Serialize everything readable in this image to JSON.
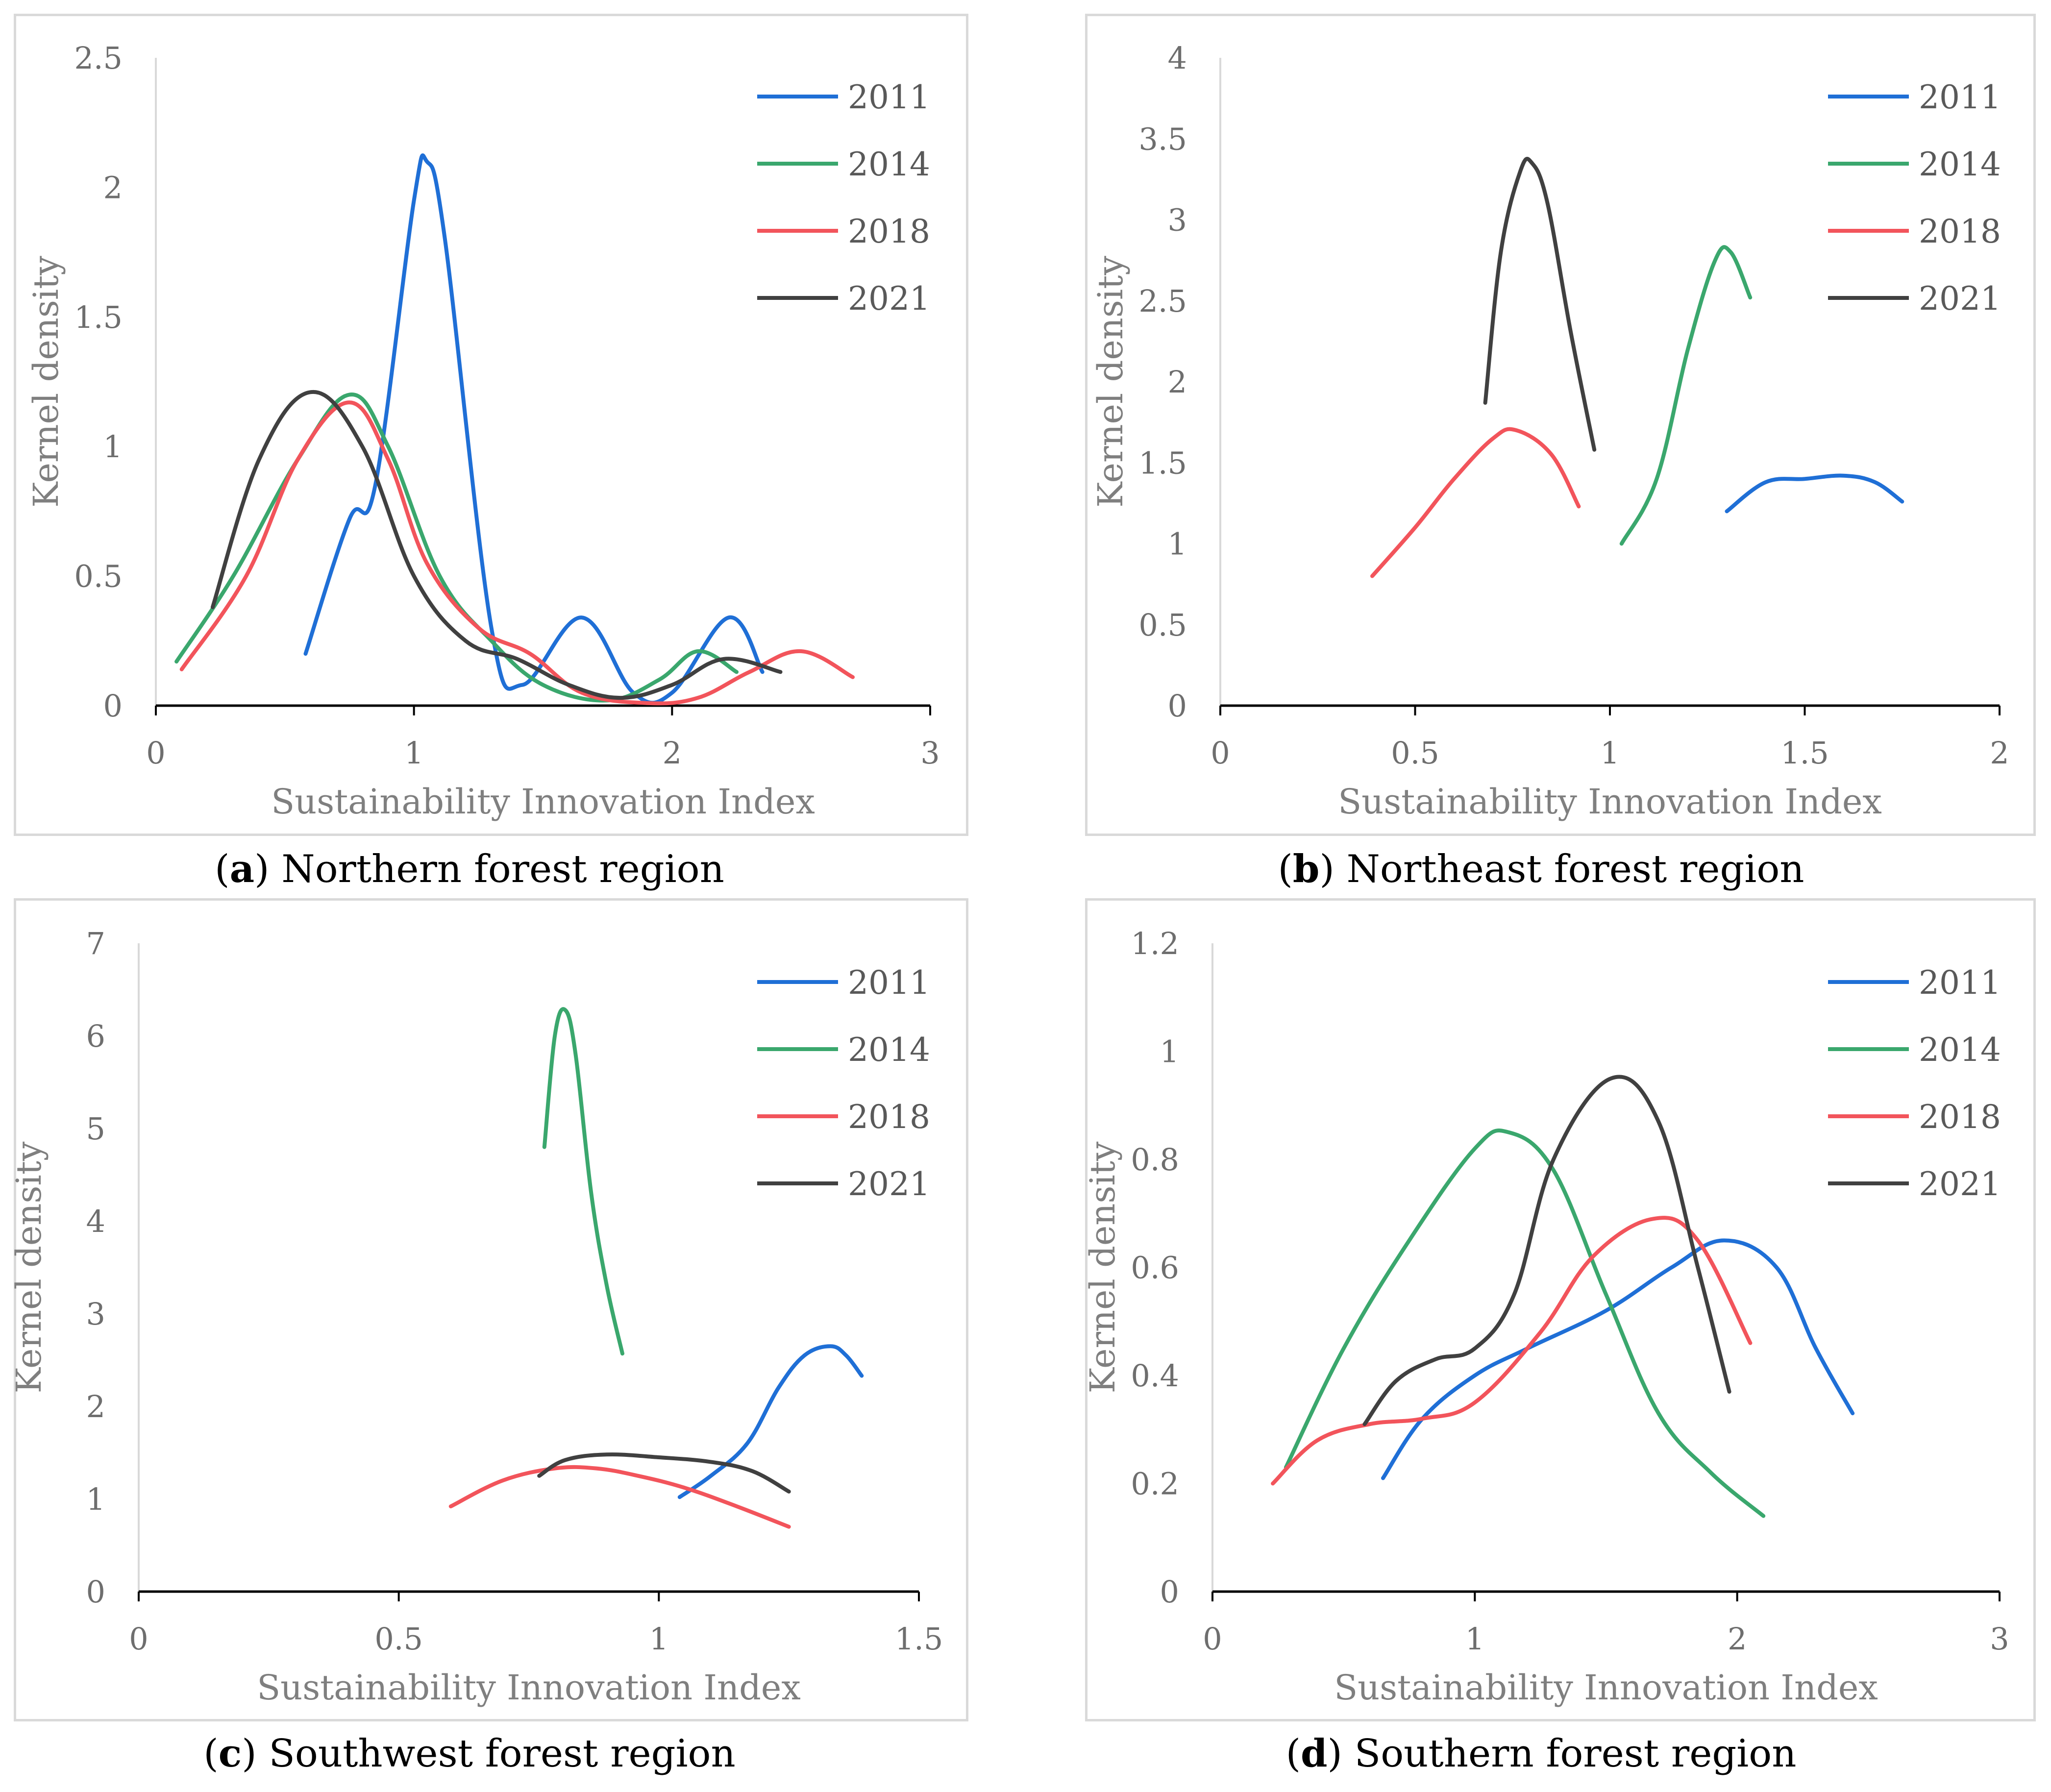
{
  "figure": {
    "series_colors": {
      "2011": "#1f6fd6",
      "2014": "#3aa76d",
      "2018": "#f2545b",
      "2021": "#404040"
    }
  },
  "chart_data": [
    {
      "id": "a",
      "type": "line",
      "caption_letter": "a",
      "caption_text": "Northern forest region",
      "xlabel": "Sustainability Innovation Index",
      "ylabel": "Kernel density",
      "xlim": [
        0,
        3
      ],
      "ylim": [
        0,
        2.5
      ],
      "xticks": [
        0,
        1,
        2,
        3
      ],
      "xtick_labels": [
        "0",
        "1",
        "2",
        "3"
      ],
      "yticks": [
        0,
        0.5,
        1,
        1.5,
        2,
        2.5
      ],
      "ytick_labels": [
        "0",
        "0.5",
        "1",
        "1.5",
        "2",
        "2.5"
      ],
      "legend": [
        "2011",
        "2014",
        "2018",
        "2021"
      ],
      "series": [
        {
          "name": "2011",
          "color": "#1f6fd6",
          "x": [
            0.58,
            0.75,
            0.85,
            1.0,
            1.05,
            1.12,
            1.3,
            1.42,
            1.65,
            1.85,
            2.0,
            2.22,
            2.35
          ],
          "y": [
            0.2,
            0.72,
            0.85,
            1.95,
            2.1,
            1.8,
            0.3,
            0.08,
            0.34,
            0.05,
            0.05,
            0.34,
            0.13
          ]
        },
        {
          "name": "2014",
          "color": "#3aa76d",
          "x": [
            0.08,
            0.3,
            0.55,
            0.75,
            0.9,
            1.1,
            1.3,
            1.5,
            1.75,
            1.95,
            2.1,
            2.25
          ],
          "y": [
            0.17,
            0.5,
            0.95,
            1.2,
            1.0,
            0.5,
            0.25,
            0.08,
            0.02,
            0.1,
            0.21,
            0.13
          ]
        },
        {
          "name": "2018",
          "color": "#f2545b",
          "x": [
            0.1,
            0.35,
            0.55,
            0.75,
            0.9,
            1.05,
            1.25,
            1.45,
            1.65,
            1.9,
            2.1,
            2.3,
            2.5,
            2.7
          ],
          "y": [
            0.14,
            0.5,
            0.95,
            1.17,
            0.95,
            0.55,
            0.3,
            0.2,
            0.05,
            0.01,
            0.03,
            0.13,
            0.21,
            0.11
          ]
        },
        {
          "name": "2021",
          "color": "#404040",
          "x": [
            0.22,
            0.4,
            0.6,
            0.8,
            1.0,
            1.2,
            1.4,
            1.6,
            1.8,
            2.0,
            2.2,
            2.42
          ],
          "y": [
            0.38,
            0.95,
            1.21,
            1.0,
            0.5,
            0.25,
            0.18,
            0.08,
            0.03,
            0.08,
            0.18,
            0.13
          ]
        }
      ]
    },
    {
      "id": "b",
      "type": "line",
      "caption_letter": "b",
      "caption_text": "Northeast forest region",
      "xlabel": "Sustainability Innovation Index",
      "ylabel": "Kernel density",
      "xlim": [
        0,
        2
      ],
      "ylim": [
        0,
        4
      ],
      "xticks": [
        0,
        0.5,
        1,
        1.5,
        2
      ],
      "xtick_labels": [
        "0",
        "0.5",
        "1",
        "1.5",
        "2"
      ],
      "yticks": [
        0,
        0.5,
        1,
        1.5,
        2,
        2.5,
        3,
        3.5,
        4
      ],
      "ytick_labels": [
        "0",
        "0.5",
        "1",
        "1.5",
        "2",
        "2.5",
        "3",
        "3.5",
        "4"
      ],
      "legend": [
        "2011",
        "2014",
        "2018",
        "2021"
      ],
      "series": [
        {
          "name": "2011",
          "color": "#1f6fd6",
          "x": [
            1.3,
            1.4,
            1.5,
            1.6,
            1.68,
            1.75
          ],
          "y": [
            1.2,
            1.38,
            1.4,
            1.42,
            1.38,
            1.26
          ]
        },
        {
          "name": "2014",
          "color": "#3aa76d",
          "x": [
            1.03,
            1.12,
            1.2,
            1.27,
            1.31,
            1.36
          ],
          "y": [
            1.0,
            1.4,
            2.2,
            2.75,
            2.8,
            2.52
          ]
        },
        {
          "name": "2018",
          "color": "#f2545b",
          "x": [
            0.39,
            0.5,
            0.6,
            0.7,
            0.76,
            0.85,
            0.92
          ],
          "y": [
            0.8,
            1.1,
            1.4,
            1.65,
            1.7,
            1.55,
            1.23
          ]
        },
        {
          "name": "2021",
          "color": "#404040",
          "x": [
            0.68,
            0.72,
            0.77,
            0.8,
            0.84,
            0.9,
            0.96
          ],
          "y": [
            1.87,
            2.8,
            3.3,
            3.35,
            3.1,
            2.3,
            1.58
          ]
        }
      ]
    },
    {
      "id": "c",
      "type": "line",
      "caption_letter": "c",
      "caption_text": "Southwest forest region",
      "xlabel": "Sustainability Innovation Index",
      "ylabel": "Kernel density",
      "xlim": [
        0,
        1.5
      ],
      "ylim": [
        0,
        7
      ],
      "xticks": [
        0,
        0.5,
        1,
        1.5
      ],
      "xtick_labels": [
        "0",
        "0.5",
        "1",
        "1.5"
      ],
      "yticks": [
        0,
        1,
        2,
        3,
        4,
        5,
        6,
        7
      ],
      "ytick_labels": [
        "0",
        "1",
        "2",
        "3",
        "4",
        "5",
        "6",
        "7"
      ],
      "legend": [
        "2011",
        "2014",
        "2018",
        "2021"
      ],
      "series": [
        {
          "name": "2011",
          "color": "#1f6fd6",
          "x": [
            1.04,
            1.1,
            1.17,
            1.23,
            1.28,
            1.33,
            1.36,
            1.39
          ],
          "y": [
            1.02,
            1.25,
            1.6,
            2.2,
            2.55,
            2.65,
            2.55,
            2.33
          ]
        },
        {
          "name": "2014",
          "color": "#3aa76d",
          "x": [
            0.78,
            0.8,
            0.82,
            0.84,
            0.87,
            0.9,
            0.93
          ],
          "y": [
            4.8,
            6.0,
            6.28,
            5.8,
            4.3,
            3.3,
            2.57
          ]
        },
        {
          "name": "2018",
          "color": "#f2545b",
          "x": [
            0.6,
            0.7,
            0.8,
            0.88,
            0.96,
            1.05,
            1.15,
            1.25
          ],
          "y": [
            0.92,
            1.2,
            1.33,
            1.33,
            1.25,
            1.12,
            0.92,
            0.7
          ]
        },
        {
          "name": "2021",
          "color": "#404040",
          "x": [
            0.77,
            0.82,
            0.9,
            1.0,
            1.1,
            1.18,
            1.25
          ],
          "y": [
            1.25,
            1.42,
            1.48,
            1.45,
            1.4,
            1.3,
            1.08
          ]
        }
      ]
    },
    {
      "id": "d",
      "type": "line",
      "caption_letter": "d",
      "caption_text": "Southern forest region",
      "xlabel": "Sustainability Innovation Index",
      "ylabel": "Kernel density",
      "xlim": [
        0,
        3
      ],
      "ylim": [
        0,
        1.2
      ],
      "xticks": [
        0,
        1,
        2,
        3
      ],
      "xtick_labels": [
        "0",
        "1",
        "2",
        "3"
      ],
      "yticks": [
        0,
        0.2,
        0.4,
        0.6,
        0.8,
        1,
        1.2
      ],
      "ytick_labels": [
        "0",
        "0.2",
        "0.4",
        "0.6",
        "0.8",
        "1",
        "1.2"
      ],
      "legend": [
        "2011",
        "2014",
        "2018",
        "2021"
      ],
      "series": [
        {
          "name": "2011",
          "color": "#1f6fd6",
          "x": [
            0.65,
            0.8,
            1.0,
            1.2,
            1.5,
            1.75,
            1.95,
            2.15,
            2.3,
            2.44
          ],
          "y": [
            0.21,
            0.32,
            0.4,
            0.45,
            0.52,
            0.6,
            0.65,
            0.6,
            0.45,
            0.33
          ]
        },
        {
          "name": "2014",
          "color": "#3aa76d",
          "x": [
            0.28,
            0.5,
            0.75,
            1.0,
            1.13,
            1.3,
            1.5,
            1.7,
            1.9,
            2.1
          ],
          "y": [
            0.23,
            0.45,
            0.65,
            0.82,
            0.85,
            0.78,
            0.55,
            0.33,
            0.22,
            0.14
          ]
        },
        {
          "name": "2018",
          "color": "#f2545b",
          "x": [
            0.23,
            0.4,
            0.6,
            0.8,
            1.0,
            1.25,
            1.45,
            1.68,
            1.85,
            2.05
          ],
          "y": [
            0.2,
            0.28,
            0.31,
            0.32,
            0.35,
            0.48,
            0.62,
            0.69,
            0.65,
            0.46
          ]
        },
        {
          "name": "2021",
          "color": "#404040",
          "x": [
            0.58,
            0.7,
            0.85,
            1.0,
            1.15,
            1.3,
            1.52,
            1.7,
            1.85,
            1.97
          ],
          "y": [
            0.31,
            0.39,
            0.43,
            0.45,
            0.55,
            0.8,
            0.95,
            0.87,
            0.6,
            0.37
          ]
        }
      ]
    }
  ]
}
